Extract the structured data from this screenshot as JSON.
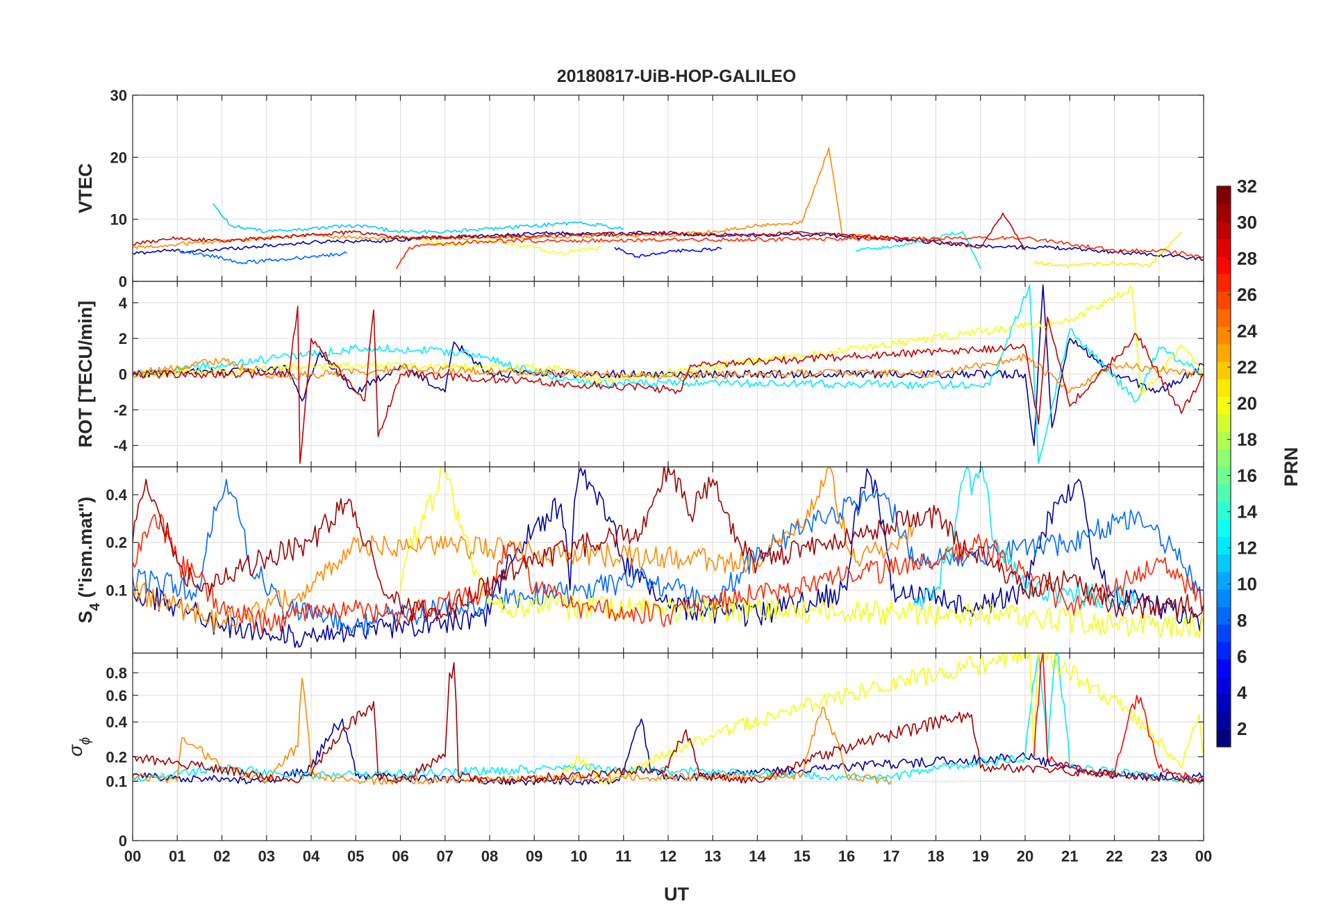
{
  "chart_data": {
    "type": "line",
    "title": "20180817-UiB-HOP-GALILEO",
    "xlabel": "UT",
    "x_ticks": [
      "00",
      "01",
      "02",
      "03",
      "04",
      "05",
      "06",
      "07",
      "08",
      "09",
      "10",
      "11",
      "12",
      "13",
      "14",
      "15",
      "16",
      "17",
      "18",
      "19",
      "20",
      "21",
      "22",
      "23",
      "00"
    ],
    "xlim": [
      0,
      24
    ],
    "panels": [
      {
        "name": "vtec",
        "ylabel": "VTEC",
        "ylim": [
          0,
          30
        ],
        "yticks": [
          "0",
          "10",
          "20",
          "30"
        ],
        "ytick_values": [
          0,
          10,
          20,
          30
        ],
        "series": [
          {
            "prn": 2,
            "x": [
              0,
              0.8,
              1.4,
              2.5,
              3.5,
              4.5,
              5.5,
              6.5,
              7.5,
              8.5,
              9.5,
              10.5,
              11.5,
              12.5,
              13.5,
              14.5,
              15.5,
              16.5,
              17.5,
              18.5,
              19.5,
              20.5,
              21.5,
              22.5,
              23.5,
              24
            ],
            "y": [
              4.5,
              5,
              4.8,
              5.5,
              6,
              6.5,
              6.5,
              7,
              7.2,
              7.5,
              7.8,
              7.5,
              7.8,
              7.6,
              7.4,
              7.5,
              7.5,
              7,
              6.5,
              6,
              5.5,
              5.5,
              5,
              4.5,
              4,
              3.5
            ]
          },
          {
            "prn": 5,
            "x": [
              10.8,
              11.3,
              12,
              13.2
            ],
            "y": [
              5.5,
              4,
              4.8,
              5.2
            ]
          },
          {
            "prn": 8,
            "x": [
              1,
              1.7,
              2.5,
              3.3,
              4,
              4.8
            ],
            "y": [
              5,
              4.2,
              3,
              3.5,
              4,
              4.5
            ]
          },
          {
            "prn": 11,
            "x": [
              1.8,
              2.2,
              3,
              4,
              5,
              6,
              7,
              8,
              9,
              10,
              11
            ],
            "y": [
              12.5,
              9,
              8,
              8.5,
              9,
              8,
              8,
              8.5,
              9,
              9.5,
              8.5
            ]
          },
          {
            "prn": 12,
            "x": [
              16.2,
              17,
              18,
              18.6,
              19
            ],
            "y": [
              5,
              5.5,
              7,
              8,
              2
            ]
          },
          {
            "prn": 20,
            "x": [
              6.5,
              7.2,
              8,
              9,
              9.5,
              10.5
            ],
            "y": [
              6.5,
              6,
              6.5,
              5.5,
              4.5,
              5.5
            ]
          },
          {
            "prn": 21,
            "x": [
              20.2,
              21,
              22,
              22.8,
              23.5
            ],
            "y": [
              3,
              2.5,
              3,
              2.5,
              8
            ]
          },
          {
            "prn": 24,
            "x": [
              0,
              1,
              2,
              3,
              4,
              5,
              6,
              7,
              8,
              12,
              13,
              14,
              15,
              15.6,
              15.9,
              17
            ],
            "y": [
              5.5,
              6,
              6.5,
              7,
              7.5,
              7,
              7,
              7,
              7,
              7.5,
              8,
              9,
              9.5,
              21.5,
              7.5,
              7
            ]
          },
          {
            "prn": 27,
            "x": [
              5.9,
              6.2,
              7,
              8,
              20,
              21,
              22,
              23,
              24
            ],
            "y": [
              2,
              5.5,
              6,
              6.5,
              7,
              6,
              5,
              5,
              4
            ]
          },
          {
            "prn": 30,
            "x": [
              0,
              1,
              2,
              3,
              4,
              5,
              6,
              12,
              13,
              14,
              15,
              16,
              17,
              18,
              19,
              19.5,
              20
            ],
            "y": [
              6,
              7,
              6.5,
              7,
              7.5,
              8,
              7,
              7.8,
              7.5,
              7.5,
              8,
              7.5,
              7,
              6.5,
              5.5,
              11,
              5
            ]
          }
        ]
      },
      {
        "name": "rot",
        "ylabel": "ROT [TECU/min]",
        "ylim": [
          -5.2,
          5.2
        ],
        "yticks": [
          "-4",
          "-2",
          "0",
          "2",
          "4"
        ],
        "ytick_values": [
          -4,
          -2,
          0,
          2,
          4
        ],
        "series": [
          {
            "prn": 2,
            "x": [
              0,
              3.5,
              3.8,
              4.2,
              5,
              6,
              7,
              7.2,
              8,
              20,
              20.2,
              20.4,
              20.6,
              21,
              22,
              23,
              24
            ],
            "y": [
              0,
              0.3,
              -1.5,
              1.2,
              -1,
              0.5,
              -1,
              1.8,
              0,
              0,
              -4,
              5,
              -3,
              2,
              0,
              -1,
              0.5
            ]
          },
          {
            "prn": 12,
            "x": [
              0,
              5.3,
              7.4,
              10,
              19.2,
              20.1,
              20.3,
              21,
              22.5,
              23,
              24
            ],
            "y": [
              0,
              1.5,
              1.2,
              -0.5,
              -0.6,
              5,
              -5,
              2.5,
              -1.5,
              1.5,
              0
            ]
          },
          {
            "prn": 20,
            "x": [
              0,
              5,
              9.5,
              10.5,
              21,
              22.4,
              22.6,
              23.5,
              24
            ],
            "y": [
              0,
              0.5,
              0.3,
              -0.4,
              3,
              4.8,
              -1.2,
              1.6,
              0
            ]
          },
          {
            "prn": 24,
            "x": [
              0,
              2,
              3,
              6,
              12,
              16,
              18,
              20,
              21,
              22,
              24
            ],
            "y": [
              0,
              0.8,
              -0.2,
              0.3,
              -0.1,
              0.1,
              0,
              1,
              -1,
              0.5,
              0
            ]
          },
          {
            "prn": 30,
            "x": [
              0,
              3.5,
              3.7,
              3.75,
              4,
              5.2,
              5.4,
              5.5,
              6,
              12.3,
              12.5,
              20,
              20.3,
              20.5,
              21,
              22.5,
              23.5,
              24
            ],
            "y": [
              0,
              0,
              3.8,
              -5,
              2,
              -1.5,
              3.6,
              -3.5,
              0,
              -0.9,
              0.5,
              1.5,
              -2.8,
              3.2,
              -1.8,
              2.2,
              -2.2,
              0
            ]
          }
        ]
      },
      {
        "name": "s4",
        "ylabel": "S4 (\"ism.mat\")",
        "ylabel_main": "S",
        "ylabel_sub": "4",
        "ylabel_rest": " (\"ism.mat\")",
        "ylim": [
          0.04,
          0.6
        ],
        "yscale": "log",
        "yticks": [
          "0.1",
          "0.2",
          "0.4"
        ],
        "ytick_values": [
          0.1,
          0.2,
          0.4
        ],
        "series": [
          {
            "prn": 2,
            "x": [
              0,
              2,
              4,
              6,
              8,
              9.6,
              9.8,
              10,
              11,
              12,
              14,
              16,
              16.5,
              17,
              19,
              20,
              21.2,
              21.5,
              22,
              23,
              24
            ],
            "y": [
              0.1,
              0.06,
              0.05,
              0.06,
              0.07,
              0.35,
              0.1,
              0.55,
              0.15,
              0.08,
              0.07,
              0.1,
              0.55,
              0.1,
              0.08,
              0.1,
              0.5,
              0.15,
              0.09,
              0.08,
              0.06
            ]
          },
          {
            "prn": 8,
            "x": [
              0,
              1.5,
              2.1,
              2.6,
              3.3,
              4,
              5,
              6,
              10,
              11.5,
              13,
              16.8,
              17.5,
              21,
              22.5,
              23.5,
              24
            ],
            "y": [
              0.12,
              0.1,
              0.5,
              0.15,
              0.08,
              0.07,
              0.06,
              0.07,
              0.1,
              0.12,
              0.08,
              0.4,
              0.15,
              0.2,
              0.3,
              0.15,
              0.08
            ]
          },
          {
            "prn": 12,
            "x": [
              17.5,
              18,
              18.4,
              18.7,
              18.8,
              19,
              19.3,
              20,
              22.5
            ],
            "y": [
              0.08,
              0.1,
              0.2,
              0.6,
              0.4,
              0.6,
              0.2,
              0.1,
              0.09
            ]
          },
          {
            "prn": 20,
            "x": [
              6,
              6.5,
              6.8,
              7,
              7.2,
              7.6,
              8,
              20,
              22,
              24
            ],
            "y": [
              0.1,
              0.3,
              0.4,
              0.6,
              0.35,
              0.15,
              0.08,
              0.07,
              0.06,
              0.06
            ]
          },
          {
            "prn": 24,
            "x": [
              0,
              1,
              2,
              3,
              4,
              5,
              14,
              15,
              15.3,
              15.6,
              15.8,
              16.2,
              17,
              17.5
            ],
            "y": [
              0.1,
              0.08,
              0.06,
              0.08,
              0.1,
              0.2,
              0.15,
              0.25,
              0.35,
              0.6,
              0.3,
              0.15,
              0.2,
              0.25
            ]
          },
          {
            "prn": 27,
            "x": [
              0,
              0.5,
              1,
              2,
              3,
              4,
              6,
              8,
              8.5,
              9,
              10,
              12,
              18,
              19,
              20,
              21,
              22,
              23,
              24
            ],
            "y": [
              0.15,
              0.3,
              0.15,
              0.08,
              0.06,
              0.08,
              0.07,
              0.1,
              0.2,
              0.1,
              0.08,
              0.07,
              0.15,
              0.2,
              0.12,
              0.08,
              0.1,
              0.15,
              0.08
            ]
          },
          {
            "prn": 31,
            "x": [
              0,
              0.3,
              0.6,
              1,
              1.5,
              4,
              4.8,
              5.5,
              6,
              7,
              11.5,
              12,
              12.5,
              13,
              13.5,
              14,
              18,
              18.5,
              19.2,
              20,
              21,
              22,
              24
            ],
            "y": [
              0.2,
              0.5,
              0.3,
              0.15,
              0.1,
              0.2,
              0.35,
              0.12,
              0.08,
              0.07,
              0.25,
              0.6,
              0.3,
              0.5,
              0.2,
              0.15,
              0.3,
              0.2,
              0.15,
              0.1,
              0.12,
              0.08,
              0.08
            ]
          }
        ]
      },
      {
        "name": "sigma_phi",
        "ylabel": "σ ϕ",
        "ylabel_main": "σ",
        "ylabel_sub": "ϕ",
        "ylim": [
          0,
          1
        ],
        "yscale": "sqrt",
        "yticks": [
          "0",
          "0.1",
          "0.2",
          "0.4",
          "0.6",
          "0.8"
        ],
        "ytick_values": [
          0,
          0.1,
          0.2,
          0.4,
          0.6,
          0.8
        ],
        "series": [
          {
            "prn": 2,
            "x": [
              0,
              3,
              4,
              4.7,
              5,
              8,
              10.8,
              11,
              11.4,
              11.6,
              12,
              20,
              21,
              22,
              24
            ],
            "y": [
              0.12,
              0.1,
              0.15,
              0.42,
              0.12,
              0.1,
              0.1,
              0.12,
              0.42,
              0.14,
              0.11,
              0.2,
              0.15,
              0.12,
              0.12
            ]
          },
          {
            "prn": 12,
            "x": [
              0,
              2,
              4,
              10,
              17,
              18,
              20,
              20.3,
              20.5,
              20.7,
              21,
              24
            ],
            "y": [
              0.1,
              0.15,
              0.12,
              0.15,
              0.11,
              0.15,
              0.2,
              1,
              0.2,
              1,
              0.15,
              0.1
            ]
          },
          {
            "prn": 20,
            "x": [
              9.5,
              10,
              10.5,
              11,
              20.1,
              20.2,
              20.3,
              23.5,
              23.9,
              24
            ],
            "y": [
              0.1,
              0.2,
              0.1,
              0.12,
              1,
              0.2,
              1,
              0.15,
              0.45,
              0.2
            ]
          },
          {
            "prn": 24,
            "x": [
              0,
              1,
              1.1,
              2,
              3,
              3.7,
              3.8,
              4,
              5,
              15,
              15.5,
              16,
              17
            ],
            "y": [
              0.12,
              0.1,
              0.3,
              0.15,
              0.1,
              0.25,
              0.75,
              0.12,
              0.1,
              0.12,
              0.5,
              0.12,
              0.1
            ]
          },
          {
            "prn": 28,
            "x": [
              20.2,
              20.4,
              20.5,
              21,
              22,
              22.5,
              23,
              24
            ],
            "y": [
              0.2,
              1,
              0.2,
              0.15,
              0.12,
              0.6,
              0.15,
              0.1
            ]
          },
          {
            "prn": 31,
            "x": [
              0,
              3.5,
              4,
              5.4,
              5.5,
              6,
              7,
              7.1,
              7.2,
              7.3,
              8,
              12,
              12.4,
              12.7,
              14,
              18.8,
              19,
              20,
              24
            ],
            "y": [
              0.2,
              0.1,
              0.12,
              0.55,
              0.12,
              0.1,
              0.2,
              0.8,
              0.9,
              0.12,
              0.1,
              0.15,
              0.35,
              0.12,
              0.1,
              0.45,
              0.15,
              0.15,
              0.1
            ]
          }
        ]
      }
    ],
    "colorbar": {
      "label": "PRN",
      "range": [
        1,
        32
      ],
      "ticks": [
        "2",
        "4",
        "6",
        "8",
        "10",
        "12",
        "14",
        "16",
        "18",
        "20",
        "22",
        "24",
        "26",
        "28",
        "30",
        "32"
      ],
      "tick_values": [
        2,
        4,
        6,
        8,
        10,
        12,
        14,
        16,
        18,
        20,
        22,
        24,
        26,
        28,
        30,
        32
      ],
      "colormap": "jet"
    }
  }
}
